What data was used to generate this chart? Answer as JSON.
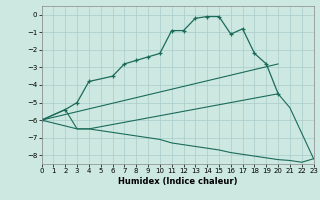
{
  "xlabel": "Humidex (Indice chaleur)",
  "background_color": "#cce8e0",
  "grid_color": "#aacccc",
  "line_color": "#1a6b5a",
  "xlim": [
    0,
    23
  ],
  "ylim": [
    -8.5,
    0.5
  ],
  "xticks": [
    0,
    1,
    2,
    3,
    4,
    5,
    6,
    7,
    8,
    9,
    10,
    11,
    12,
    13,
    14,
    15,
    16,
    17,
    18,
    19,
    20,
    21,
    22,
    23
  ],
  "yticks": [
    0,
    -1,
    -2,
    -3,
    -4,
    -5,
    -6,
    -7,
    -8
  ],
  "series": [
    {
      "x": [
        0,
        2,
        3,
        4,
        6,
        7,
        8,
        9,
        10,
        11,
        12,
        13,
        14,
        15,
        16,
        17,
        18,
        19,
        20
      ],
      "y": [
        -6.0,
        -5.4,
        -5.0,
        -3.8,
        -3.5,
        -2.8,
        -2.6,
        -2.4,
        -2.2,
        -0.9,
        -0.9,
        -0.2,
        -0.1,
        -0.1,
        -1.1,
        -0.8,
        -2.2,
        -2.8,
        -4.5
      ],
      "marker": true
    },
    {
      "x": [
        0,
        2,
        3,
        4,
        20,
        21,
        23
      ],
      "y": [
        -6.0,
        -5.4,
        -6.5,
        -6.5,
        -4.5,
        -5.3,
        -8.2
      ],
      "marker": false
    },
    {
      "x": [
        0,
        20
      ],
      "y": [
        -6.0,
        -2.8
      ],
      "marker": false
    },
    {
      "x": [
        0,
        3,
        4,
        5,
        6,
        7,
        8,
        9,
        10,
        11,
        12,
        13,
        14,
        15,
        16,
        17,
        18,
        19,
        20,
        21,
        22,
        23
      ],
      "y": [
        -6.0,
        -6.5,
        -6.5,
        -6.6,
        -6.7,
        -6.8,
        -6.9,
        -7.0,
        -7.1,
        -7.3,
        -7.4,
        -7.5,
        -7.6,
        -7.7,
        -7.85,
        -7.95,
        -8.05,
        -8.15,
        -8.25,
        -8.3,
        -8.4,
        -8.2
      ],
      "marker": false
    }
  ]
}
